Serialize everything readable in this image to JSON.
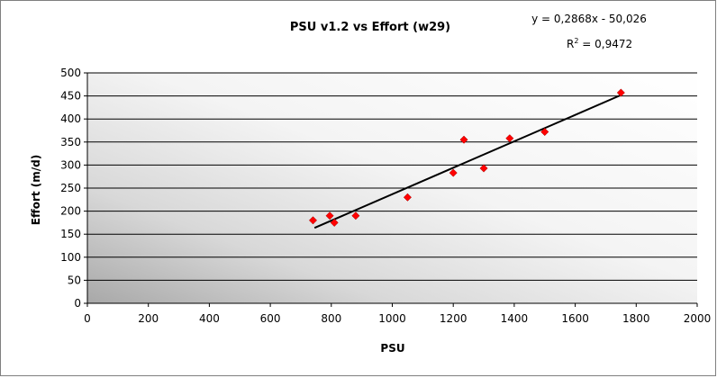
{
  "chart_data": {
    "type": "scatter",
    "title": "PSU v1.2 vs Effort (w29)",
    "xlabel": "PSU",
    "ylabel": "Effort (m/d)",
    "xlim": [
      0,
      2000
    ],
    "ylim": [
      0,
      500
    ],
    "x_ticks": [
      "0",
      "200",
      "400",
      "600",
      "800",
      "1000",
      "1200",
      "1400",
      "1600",
      "1800",
      "2000"
    ],
    "y_ticks": [
      "0",
      "50",
      "100",
      "150",
      "200",
      "250",
      "300",
      "350",
      "400",
      "450",
      "500"
    ],
    "x_tick_values": [
      0,
      200,
      400,
      600,
      800,
      1000,
      1200,
      1400,
      1600,
      1800,
      2000
    ],
    "y_tick_values": [
      0,
      50,
      100,
      150,
      200,
      250,
      300,
      350,
      400,
      450,
      500
    ],
    "grid": "horizontal",
    "legend": "none",
    "marker_color": "#ff0000",
    "trendline_color": "#000000",
    "points": [
      {
        "x": 740,
        "y": 180
      },
      {
        "x": 795,
        "y": 190
      },
      {
        "x": 810,
        "y": 175
      },
      {
        "x": 880,
        "y": 190
      },
      {
        "x": 1050,
        "y": 230
      },
      {
        "x": 1200,
        "y": 283
      },
      {
        "x": 1235,
        "y": 355
      },
      {
        "x": 1300,
        "y": 293
      },
      {
        "x": 1385,
        "y": 358
      },
      {
        "x": 1500,
        "y": 372
      },
      {
        "x": 1750,
        "y": 457
      }
    ],
    "trendline": {
      "slope": 0.2868,
      "intercept": -50.026,
      "x_range": [
        745,
        1750
      ],
      "equation": "y = 0,2868x - 50,026",
      "r_squared_label": "R",
      "r_squared_sup": "2",
      "r_squared_value": " = 0,9472"
    }
  }
}
